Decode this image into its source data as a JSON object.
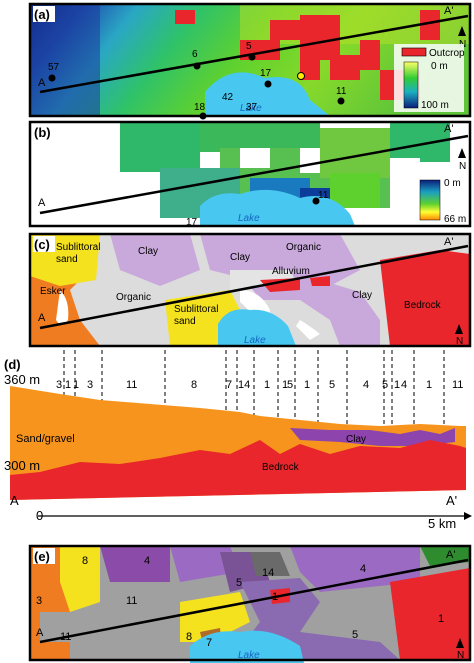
{
  "panel_a": {
    "tag": "(a)",
    "north": "N",
    "lake": "Lake",
    "line_start": "A",
    "line_end": "A'",
    "legend": {
      "outcrop": "Outcrop",
      "top": "0 m",
      "bottom": "100 m"
    },
    "points": [
      "57",
      "6",
      "5",
      "17",
      "11",
      "18",
      "42",
      "37",
      "20"
    ],
    "colors": {
      "outcrop": "#e8262b",
      "lake": "#48c8f0"
    }
  },
  "panel_b": {
    "tag": "(b)",
    "north": "N",
    "lake": "Lake",
    "line_start": "A",
    "line_end": "A'",
    "legend": {
      "top": "0 m",
      "bottom": "66 m"
    },
    "points": [
      "11",
      "17"
    ]
  },
  "panel_c": {
    "tag": "(c)",
    "north": "N",
    "lake": "Lake",
    "line_start": "A",
    "line_end": "A'",
    "labels": {
      "sublittoral_1": "Sublittoral",
      "sand_1": "sand",
      "clay_1": "Clay",
      "clay_2": "Clay",
      "organic_1": "Organic",
      "alluvium": "Alluvium",
      "esker": "Esker",
      "organic_2": "Organic",
      "sublittoral_2": "Sublittoral",
      "sand_2": "sand",
      "clay_3": "Clay",
      "bedrock": "Bedrock"
    },
    "colors": {
      "esker": "#f07c22",
      "sand": "#f5e21e",
      "organic": "#dcdcdc",
      "clay": "#c9a9dc",
      "bedrock": "#e8262b",
      "lake": "#48c8f0"
    }
  },
  "panel_d": {
    "tag": "(d)",
    "y_top": "360 m",
    "y_bottom": "300 m",
    "x_start": "0",
    "x_end": "5 km",
    "line_start": "A",
    "line_end": "A'",
    "units": [
      "3",
      "1",
      "1",
      "3",
      "11",
      "8",
      "7",
      "14",
      "1",
      "1",
      "5",
      "1",
      "5",
      "4",
      "5",
      "1",
      "4",
      "1",
      "11"
    ],
    "layer_labels": {
      "sand_gravel": "Sand/gravel",
      "bedrock": "Bedrock",
      "clay": "Clay"
    },
    "colors": {
      "sand_gravel": "#f7941d",
      "bedrock": "#e8262b",
      "clay": "#8e44ad"
    }
  },
  "panel_e": {
    "tag": "(e)",
    "north": "N",
    "lake": "Lake",
    "line_start": "A",
    "line_end": "A'",
    "units": [
      "8",
      "4",
      "3",
      "11",
      "5",
      "14",
      "4",
      "1",
      "11",
      "8",
      "7",
      "5",
      "1"
    ]
  }
}
